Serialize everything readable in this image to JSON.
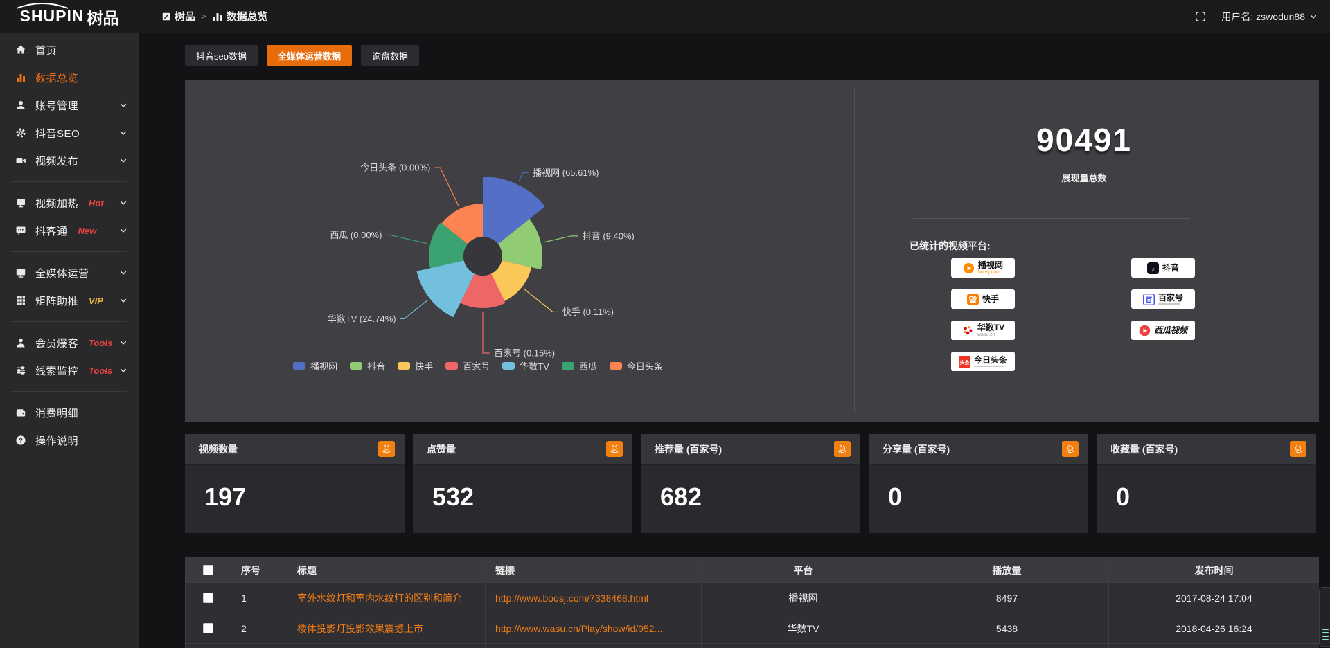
{
  "topbar": {
    "logo_en": "SHUPIN",
    "logo_cn": "树品",
    "breadcrumb": [
      {
        "label": "树品",
        "icon": "square"
      },
      {
        "label": "数据总览",
        "icon": "bars"
      }
    ],
    "breadcrumb_sep": ">",
    "username": "用户名: zswodun88"
  },
  "sidebar": {
    "items": [
      {
        "icon": "home",
        "label": "首页"
      },
      {
        "icon": "bars",
        "label": "数据总览",
        "active": true
      },
      {
        "icon": "user",
        "label": "账号管理",
        "chevron": true
      },
      {
        "icon": "gear",
        "label": "抖音SEO",
        "chevron": true
      },
      {
        "icon": "video",
        "label": "视频发布",
        "chevron": true
      },
      {
        "divider": true
      },
      {
        "icon": "screen",
        "label": "视频加热",
        "tag": "Hot",
        "tag_color": "#e8423e",
        "chevron": true
      },
      {
        "icon": "chat",
        "label": "抖客通",
        "tag": "New",
        "tag_color": "#e8423e",
        "chevron": true
      },
      {
        "divider": true
      },
      {
        "icon": "monitor",
        "label": "全媒体运营",
        "chevron": true
      },
      {
        "icon": "grid",
        "label": "矩阵助推",
        "tag": "VIP",
        "tag_color": "#f0b93a",
        "chevron": true
      },
      {
        "divider": true
      },
      {
        "icon": "person",
        "label": "会员爆客",
        "tag": "Tools",
        "tag_color": "#e8423e",
        "chevron": true
      },
      {
        "icon": "sliders",
        "label": "线索监控",
        "tag": "Tools",
        "tag_color": "#e8423e",
        "chevron": true
      },
      {
        "divider": true
      },
      {
        "icon": "wallet",
        "label": "消费明细"
      },
      {
        "icon": "question",
        "label": "操作说明"
      }
    ]
  },
  "tabs": [
    {
      "label": "抖音seo数据",
      "active": false
    },
    {
      "label": "全媒体运营数据",
      "active": true
    },
    {
      "label": "询盘数据",
      "active": false
    }
  ],
  "chart_data": {
    "type": "pie",
    "style": "nightingale-rose",
    "categories": [
      "播视网",
      "抖音",
      "快手",
      "百家号",
      "华数TV",
      "西瓜",
      "今日头条"
    ],
    "values_percent": [
      65.61,
      9.4,
      0.11,
      0.15,
      24.74,
      0,
      0
    ],
    "colors": [
      "#5470c6",
      "#91cc75",
      "#fac858",
      "#ee6666",
      "#73c0de",
      "#3ba272",
      "#fc8452"
    ],
    "legend": [
      "播视网",
      "抖音",
      "快手",
      "百家号",
      "华数TV",
      "西瓜",
      "今日头条"
    ],
    "legend_position": "bottom",
    "inner_radius": 28,
    "radii": [
      115,
      86,
      72,
      75,
      98,
      78,
      76
    ],
    "label_line_len": [
      14,
      40,
      52,
      60,
      42,
      55,
      61
    ],
    "label_line_len2": [
      8,
      10,
      8,
      10,
      6,
      5,
      8
    ]
  },
  "summary": {
    "total": "90491",
    "total_label": "展现量总数",
    "platforms_label": "已统计的视频平台:",
    "platforms": [
      {
        "name": "播视网",
        "sub": "boosj.com",
        "sub_color": "#ff8a00",
        "logo": "boosj"
      },
      {
        "name": "抖音",
        "logo": "douyin"
      },
      {
        "name": "快手",
        "logo": "kuaishou"
      },
      {
        "name": "百家号",
        "logo": "baijiahao",
        "subline": true
      },
      {
        "name": "华数TV",
        "sub": "wasu.cn",
        "sub_color": "#9a9a9a",
        "logo": "wasu"
      },
      {
        "name": "西瓜视频",
        "logo": "xigua",
        "italic": true
      },
      {
        "name": "今日头条",
        "logo": "toutiao",
        "subline": true
      }
    ]
  },
  "stat_cards": [
    {
      "title": "视频数量",
      "badge": "总",
      "value": "197"
    },
    {
      "title": "点赞量",
      "badge": "总",
      "value": "532"
    },
    {
      "title": "推荐量 (百家号)",
      "badge": "总",
      "value": "682"
    },
    {
      "title": "分享量 (百家号)",
      "badge": "总",
      "value": "0"
    },
    {
      "title": "收藏量 (百家号)",
      "badge": "总",
      "value": "0"
    }
  ],
  "table": {
    "headers": [
      "序号",
      "标题",
      "链接",
      "平台",
      "播放量",
      "发布时间"
    ],
    "rows": [
      {
        "index": "1",
        "title": "室外水纹灯和室内水纹灯的区别和简介",
        "link": "http://www.boosj.com/7338468.html",
        "platform": "播视网",
        "plays": "8497",
        "time": "2017-08-24 17:04"
      },
      {
        "index": "2",
        "title": "楼体投影灯投影效果震撼上市",
        "link": "http://www.wasu.cn/Play/show/id/952...",
        "platform": "华数TV",
        "plays": "5438",
        "time": "2018-04-26 16:24"
      }
    ]
  }
}
